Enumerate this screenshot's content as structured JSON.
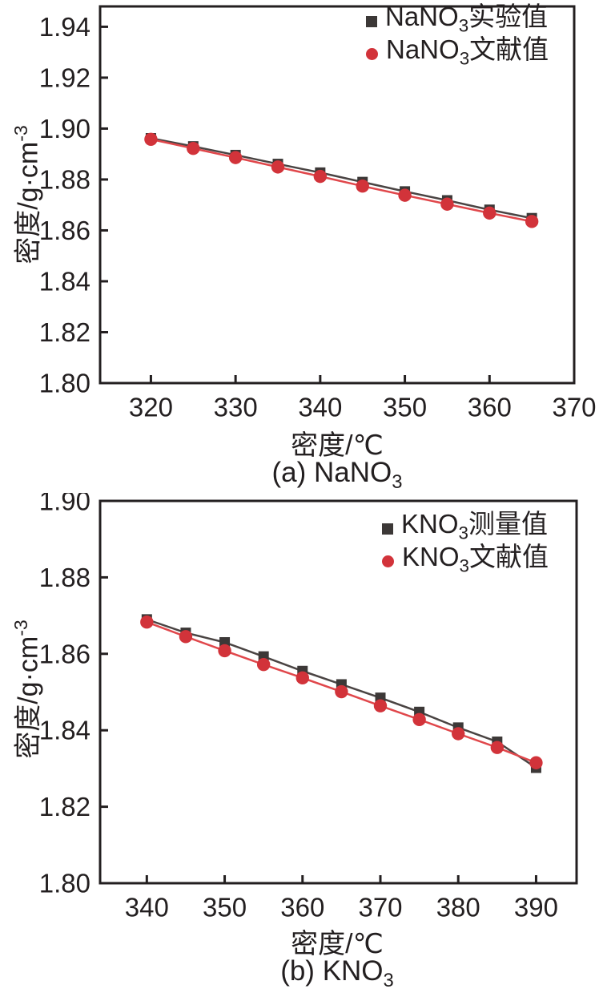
{
  "colors": {
    "frame": "#231f20",
    "text": "#231f20",
    "experimental_marker": "#3c3837",
    "experimental_line": "#4a4443",
    "literature_marker": "#d2333a",
    "literature_line": "#e0474b"
  },
  "chart_data": [
    {
      "type": "line",
      "title": "(a) NaNO3",
      "caption_prefix": "(a) NaNO",
      "caption_sub": "3",
      "xlabel": "密度/℃",
      "ylabel": "密度/g·cm⁻³",
      "ylabel_prefix": "密度/g·cm",
      "ylabel_sup": "-3",
      "xlim": [
        314,
        370
      ],
      "ylim": [
        1.8,
        1.948
      ],
      "x_ticks": [
        320,
        330,
        340,
        350,
        360,
        370
      ],
      "y_ticks": [
        1.8,
        1.82,
        1.84,
        1.86,
        1.88,
        1.9,
        1.92,
        1.94
      ],
      "y_tick_decimals": 2,
      "grid": false,
      "legend_position": "top-right",
      "x": [
        320,
        325,
        330,
        335,
        340,
        345,
        350,
        355,
        360,
        365
      ],
      "series": [
        {
          "name": "NaNO3实验值",
          "label_prefix": "NaNO",
          "label_sub": "3",
          "label_suffix": "实验值",
          "marker": "square",
          "color_key": "experimental",
          "values": [
            1.8962,
            1.893,
            1.8896,
            1.8861,
            1.8827,
            1.879,
            1.8753,
            1.8718,
            1.8681,
            1.8648
          ]
        },
        {
          "name": "NaNO3文献值",
          "label_prefix": "NaNO",
          "label_sub": "3",
          "label_suffix": "文献值",
          "marker": "circle",
          "color_key": "literature",
          "values": [
            1.8958,
            1.8922,
            1.8886,
            1.8849,
            1.8812,
            1.8774,
            1.8738,
            1.8703,
            1.8668,
            1.8635
          ]
        }
      ]
    },
    {
      "type": "line",
      "title": "(b) KNO3",
      "caption_prefix": "(b) KNO",
      "caption_sub": "3",
      "xlabel": "密度/℃",
      "ylabel": "密度/g·cm⁻³",
      "ylabel_prefix": "密度/g·cm",
      "ylabel_sup": "-3",
      "xlim": [
        334,
        395.2
      ],
      "ylim": [
        1.8,
        1.9
      ],
      "x_ticks": [
        340,
        350,
        360,
        370,
        380,
        390
      ],
      "y_ticks": [
        1.8,
        1.82,
        1.84,
        1.86,
        1.88,
        1.9
      ],
      "y_tick_decimals": 2,
      "grid": false,
      "legend_position": "top-right",
      "x": [
        340,
        345,
        350,
        355,
        360,
        365,
        370,
        375,
        380,
        385,
        390
      ],
      "series": [
        {
          "name": "KNO3测量值",
          "label_prefix": "KNO",
          "label_sub": "3",
          "label_suffix": "测量值",
          "marker": "square",
          "color_key": "experimental",
          "values": [
            1.869,
            1.8655,
            1.863,
            1.8593,
            1.8555,
            1.852,
            1.8485,
            1.8448,
            1.8407,
            1.837,
            1.8302
          ]
        },
        {
          "name": "KNO3文献值",
          "label_prefix": "KNO",
          "label_sub": "3",
          "label_suffix": "文献值",
          "marker": "circle",
          "color_key": "literature",
          "values": [
            1.8683,
            1.8645,
            1.8608,
            1.8572,
            1.8537,
            1.8501,
            1.8464,
            1.8428,
            1.8391,
            1.8355,
            1.8315
          ]
        }
      ]
    }
  ]
}
